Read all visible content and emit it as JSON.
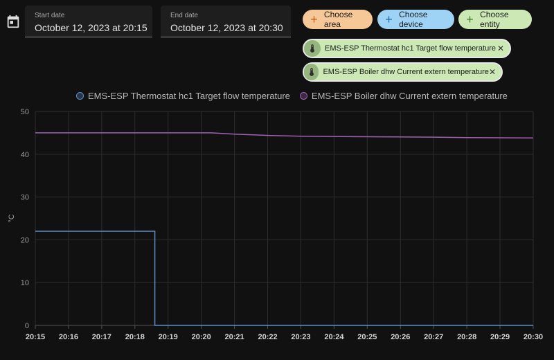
{
  "start_date": {
    "label": "Start date",
    "value": "October 12, 2023 at 20:15"
  },
  "end_date": {
    "label": "End date",
    "value": "October 12, 2023 at 20:30"
  },
  "buttons": {
    "choose_area": "Choose area",
    "choose_device": "Choose device",
    "choose_entity": "Choose entity"
  },
  "entities": [
    {
      "name": "EMS-ESP Thermostat hc1 Target flow temperature",
      "icon": "thermometer-icon"
    },
    {
      "name": "EMS-ESP Boiler dhw Current extern temperature",
      "icon": "thermometer-icon"
    }
  ],
  "colors": {
    "series1": "#5b8ec9",
    "series2": "#a062b7",
    "area": "#f7c897",
    "device": "#9ed3f6",
    "entity": "#cce8b5"
  },
  "chart_data": {
    "type": "line",
    "ylabel": "°C",
    "ylim": [
      0,
      50
    ],
    "yticks": [
      0,
      10,
      20,
      30,
      40,
      50
    ],
    "xticks": [
      "20:15",
      "20:16",
      "20:17",
      "20:18",
      "20:19",
      "20:20",
      "20:21",
      "20:22",
      "20:23",
      "20:24",
      "20:25",
      "20:26",
      "20:27",
      "20:28",
      "20:29",
      "20:30"
    ],
    "grid": true,
    "legend": "top",
    "series": [
      {
        "name": "EMS-ESP Thermostat hc1 Target flow temperature",
        "step": true,
        "points": [
          [
            "20:15",
            22
          ],
          [
            "20:18.6",
            22
          ],
          [
            "20:18.6",
            0
          ],
          [
            "20:30",
            0
          ]
        ]
      },
      {
        "name": "EMS-ESP Boiler dhw Current extern temperature",
        "step": false,
        "points": [
          [
            "20:15",
            45
          ],
          [
            "20:20.3",
            45
          ],
          [
            "20:21",
            44.7
          ],
          [
            "20:22",
            44.4
          ],
          [
            "20:23",
            44.2
          ],
          [
            "20:25",
            44.1
          ],
          [
            "20:27",
            44
          ],
          [
            "20:28",
            43.9
          ],
          [
            "20:30",
            43.8
          ]
        ]
      }
    ]
  }
}
